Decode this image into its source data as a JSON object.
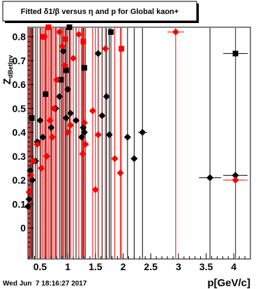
{
  "footer": {
    "timestamp": "Wed Jun  7 18:16:27 2017"
  },
  "chart_data": {
    "type": "scatter",
    "title": "Fitted δ1/β versus η and p for Global kaon+",
    "xlabel": "p[GeV/c]",
    "ylabel": "Z_{dBetInv}",
    "xlim": [
      0.28,
      4.3
    ],
    "ylim": [
      -0.13,
      0.84
    ],
    "x_ticks": [
      0.5,
      1,
      1.5,
      2,
      2.5,
      3,
      3.5,
      4
    ],
    "x_tick_labels": [
      "0.5",
      "1",
      "1.5",
      "2",
      "2.5",
      "3",
      "3.5",
      "4"
    ],
    "y_ticks": [
      0,
      0.1,
      0.2,
      0.3,
      0.4,
      0.5,
      0.6,
      0.7,
      0.8
    ],
    "y_tick_labels": [
      "0",
      "0.1",
      "0.2",
      "0.3",
      "0.4",
      "0.5",
      "0.6",
      "0.7",
      "0.8"
    ],
    "grid": false,
    "series": [
      {
        "color": "#000000",
        "marker": "diamond",
        "points": [
          [
            0.28,
            0.09
          ],
          [
            0.3,
            0.12
          ],
          [
            0.32,
            0.24
          ],
          [
            0.36,
            0.2
          ],
          [
            0.42,
            0.28
          ],
          [
            0.45,
            0.36
          ],
          [
            0.5,
            0.45
          ],
          [
            0.55,
            0.38
          ],
          [
            0.62,
            0.3
          ],
          [
            0.7,
            0.42
          ],
          [
            0.78,
            0.5
          ],
          [
            0.85,
            0.55
          ],
          [
            0.92,
            0.74
          ],
          [
            0.97,
            0.46
          ],
          [
            1.0,
            0.58
          ],
          [
            1.05,
            0.48
          ],
          [
            1.15,
            0.45
          ],
          [
            1.25,
            0.38
          ],
          [
            1.28,
            0.42
          ],
          [
            1.3,
            0.4
          ],
          [
            1.55,
            0.73
          ],
          [
            1.62,
            0.47
          ],
          [
            1.7,
            0.55
          ],
          [
            1.75,
            0.39
          ],
          [
            2.08,
            0.38
          ],
          [
            2.2,
            0.29
          ],
          [
            2.35,
            0.4
          ],
          [
            3.57,
            0.21
          ],
          [
            4.03,
            0.22
          ]
        ],
        "xerr": [
          0.01,
          0.01,
          0.01,
          0.01,
          0.01,
          0.01,
          0.01,
          0.01,
          0.01,
          0.01,
          0.01,
          0.01,
          0.02,
          0.02,
          0.02,
          0.02,
          0.02,
          0.03,
          0.03,
          0.03,
          0.03,
          0.03,
          0.04,
          0.05,
          0.06,
          0.06,
          0.08,
          0.2,
          0.22
        ]
      },
      {
        "color": "#000000",
        "marker": "square",
        "points": [
          [
            0.35,
            0.46
          ],
          [
            0.6,
            0.56
          ],
          [
            0.88,
            0.62
          ],
          [
            0.97,
            0.66
          ],
          [
            1.03,
            0.84
          ],
          [
            1.3,
            0.67
          ],
          [
            1.78,
            0.82
          ],
          [
            4.03,
            0.73
          ]
        ],
        "xerr": [
          0.01,
          0.01,
          0.02,
          0.02,
          0.02,
          0.03,
          0.05,
          0.22
        ]
      },
      {
        "color": "#ff0000",
        "marker": "diamond",
        "points": [
          [
            0.3,
            0.15
          ],
          [
            0.33,
            0.22
          ],
          [
            0.38,
            0.28
          ],
          [
            0.45,
            0.35
          ],
          [
            0.52,
            0.25
          ],
          [
            0.58,
            0.8
          ],
          [
            0.62,
            0.3
          ],
          [
            0.68,
            0.45
          ],
          [
            0.72,
            0.38
          ],
          [
            0.75,
            0.5
          ],
          [
            0.8,
            0.62
          ],
          [
            0.85,
            0.82
          ],
          [
            0.9,
            0.76
          ],
          [
            0.95,
            0.68
          ],
          [
            1.0,
            0.4
          ],
          [
            1.05,
            0.43
          ],
          [
            1.1,
            0.71
          ],
          [
            1.2,
            0.81
          ],
          [
            1.27,
            0.31
          ],
          [
            1.3,
            0.44
          ],
          [
            1.32,
            0.35
          ],
          [
            1.45,
            0.49
          ],
          [
            1.5,
            0.16
          ],
          [
            1.55,
            0.39
          ],
          [
            1.68,
            0.75
          ],
          [
            1.85,
            0.29
          ],
          [
            1.95,
            0.23
          ],
          [
            2.95,
            0.82
          ],
          [
            4.03,
            0.2
          ]
        ],
        "xerr": [
          0.01,
          0.01,
          0.01,
          0.01,
          0.01,
          0.01,
          0.01,
          0.01,
          0.01,
          0.01,
          0.01,
          0.01,
          0.02,
          0.02,
          0.02,
          0.02,
          0.02,
          0.03,
          0.03,
          0.03,
          0.03,
          0.03,
          0.03,
          0.03,
          0.04,
          0.05,
          0.05,
          0.15,
          0.22
        ]
      },
      {
        "color": "#ff0000",
        "marker": "square",
        "points": [
          [
            0.55,
            0.8
          ],
          [
            0.65,
            0.84
          ],
          [
            0.95,
            0.79
          ],
          [
            1.28,
            0.78
          ],
          [
            1.97,
            0.75
          ]
        ],
        "xerr": [
          0.01,
          0.01,
          0.02,
          0.03,
          0.05
        ]
      }
    ]
  }
}
